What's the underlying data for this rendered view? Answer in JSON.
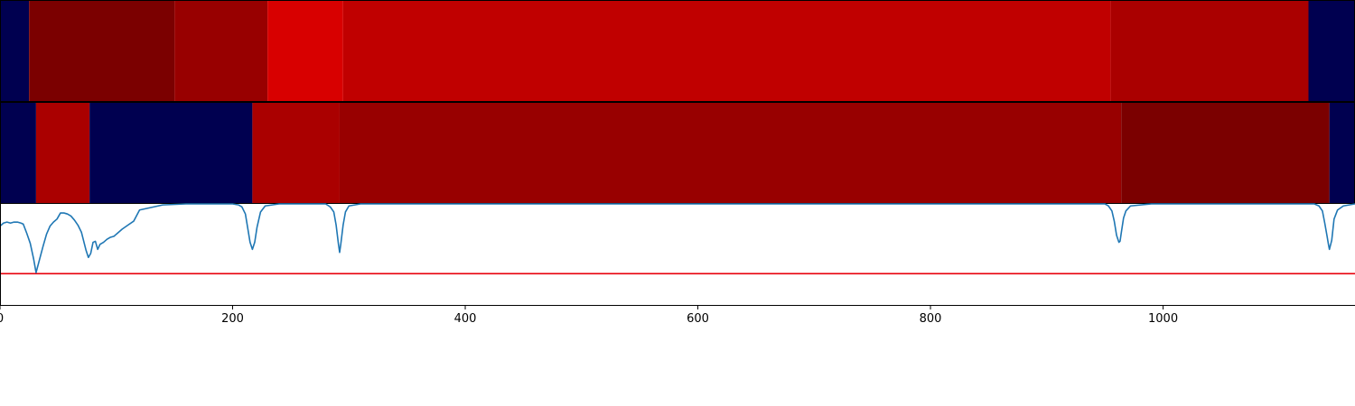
{
  "chart_data": [
    {
      "type": "heatmap",
      "xlim": [
        0,
        1165
      ],
      "segments": [
        {
          "start": 0,
          "end": 25,
          "color": "#000050"
        },
        {
          "start": 25,
          "end": 150,
          "color": "#7b0000"
        },
        {
          "start": 150,
          "end": 230,
          "color": "#980000"
        },
        {
          "start": 230,
          "end": 295,
          "color": "#d80000"
        },
        {
          "start": 295,
          "end": 955,
          "color": "#c00000"
        },
        {
          "start": 955,
          "end": 1125,
          "color": "#aa0000"
        },
        {
          "start": 1125,
          "end": 1165,
          "color": "#000050"
        }
      ]
    },
    {
      "type": "heatmap",
      "xlim": [
        0,
        1165
      ],
      "segments": [
        {
          "start": 0,
          "end": 31,
          "color": "#000050"
        },
        {
          "start": 31,
          "end": 77,
          "color": "#aa0000"
        },
        {
          "start": 77,
          "end": 217,
          "color": "#000050"
        },
        {
          "start": 217,
          "end": 292,
          "color": "#aa0000"
        },
        {
          "start": 292,
          "end": 964,
          "color": "#980000"
        },
        {
          "start": 964,
          "end": 1143,
          "color": "#7b0000"
        },
        {
          "start": 1143,
          "end": 1165,
          "color": "#000050"
        }
      ]
    },
    {
      "type": "line",
      "xlim": [
        0,
        1165
      ],
      "ylim": [
        0,
        1
      ],
      "xticks": [
        "0",
        "200",
        "400",
        "600",
        "800",
        "1000"
      ],
      "xtick_values": [
        0,
        200,
        400,
        600,
        800,
        1000
      ],
      "threshold": {
        "y": 0.31,
        "color": "#e8000b"
      },
      "series": [
        {
          "color": "#1f77b4",
          "x": [
            0,
            3,
            6,
            9,
            12,
            15,
            18,
            20,
            23,
            26,
            29,
            31,
            34,
            37,
            40,
            43,
            46,
            49,
            52,
            55,
            58,
            61,
            64,
            67,
            70,
            72,
            74,
            76,
            78,
            80,
            82,
            84,
            86,
            89,
            92,
            95,
            98,
            101,
            105,
            110,
            115,
            120,
            140,
            160,
            200,
            205,
            208,
            211,
            213,
            215,
            217,
            219,
            221,
            224,
            228,
            240,
            280,
            284,
            287,
            289,
            291,
            292,
            293,
            295,
            297,
            300,
            310,
            400,
            600,
            800,
            900,
            950,
            953,
            956,
            958,
            960,
            962,
            963,
            964,
            966,
            968,
            972,
            990,
            1100,
            1130,
            1134,
            1137,
            1139,
            1141,
            1142,
            1143,
            1145,
            1147,
            1150,
            1155,
            1165
          ],
          "y": [
            0.78,
            0.81,
            0.82,
            0.81,
            0.82,
            0.82,
            0.81,
            0.8,
            0.71,
            0.61,
            0.45,
            0.32,
            0.45,
            0.58,
            0.7,
            0.78,
            0.82,
            0.85,
            0.91,
            0.91,
            0.9,
            0.88,
            0.84,
            0.79,
            0.72,
            0.63,
            0.54,
            0.47,
            0.51,
            0.62,
            0.63,
            0.55,
            0.6,
            0.62,
            0.65,
            0.67,
            0.68,
            0.71,
            0.75,
            0.79,
            0.83,
            0.94,
            0.99,
            1.0,
            1.0,
            0.99,
            0.97,
            0.9,
            0.76,
            0.62,
            0.55,
            0.62,
            0.77,
            0.92,
            0.98,
            1.0,
            1.0,
            0.97,
            0.92,
            0.79,
            0.6,
            0.52,
            0.6,
            0.79,
            0.92,
            0.98,
            1.0,
            1.0,
            1.0,
            1.0,
            1.0,
            1.0,
            0.98,
            0.93,
            0.83,
            0.69,
            0.62,
            0.63,
            0.71,
            0.86,
            0.93,
            0.98,
            1.0,
            1.0,
            1.0,
            0.98,
            0.93,
            0.81,
            0.68,
            0.61,
            0.55,
            0.64,
            0.85,
            0.94,
            0.98,
            1.0
          ]
        }
      ]
    }
  ]
}
